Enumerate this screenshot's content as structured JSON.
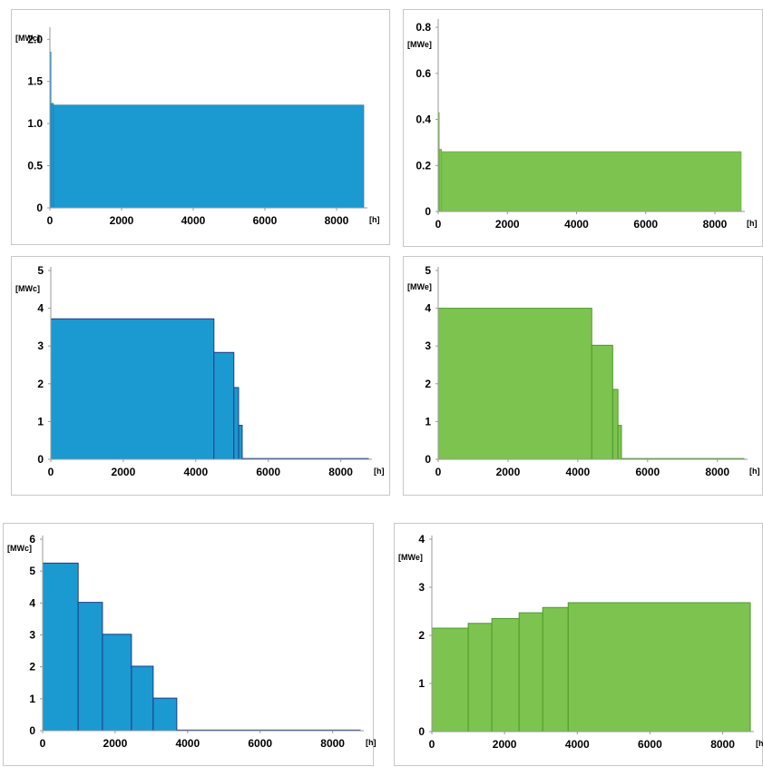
{
  "chart_data": [
    {
      "type": "area",
      "color": "#1a9ad0",
      "edge": "#1a78b0",
      "ylabel": "[MWc]",
      "xlabel": "[h]",
      "xlim": [
        0,
        8760
      ],
      "ylim": [
        0,
        2.1
      ],
      "yticks": [
        0,
        0.5,
        1.0,
        1.5,
        2.0
      ],
      "ytick_labels": [
        "0",
        "0.5",
        "1.0",
        "1.5",
        "2.0"
      ],
      "xticks": [
        0,
        2000,
        4000,
        6000,
        8000
      ],
      "xtick_labels": [
        "0",
        "2000",
        "4000",
        "6000",
        "8000"
      ],
      "steps": [
        {
          "x0": 0,
          "x1": 30,
          "y": 1.85
        },
        {
          "x0": 30,
          "x1": 100,
          "y": 1.24
        },
        {
          "x0": 100,
          "x1": 8760,
          "y": 1.22
        }
      ]
    },
    {
      "type": "area",
      "color": "#7dc350",
      "edge": "#5fa838",
      "ylabel": "[MWe]",
      "xlabel": "[h]",
      "xlim": [
        0,
        8760
      ],
      "ylim": [
        0,
        0.82
      ],
      "yticks": [
        0,
        0.2,
        0.4,
        0.6,
        0.8
      ],
      "ytick_labels": [
        "0",
        "0.2",
        "0.4",
        "0.6",
        "0.8"
      ],
      "xticks": [
        0,
        2000,
        4000,
        6000,
        8000
      ],
      "xtick_labels": [
        "0",
        "2000",
        "4000",
        "6000",
        "8000"
      ],
      "steps": [
        {
          "x0": 0,
          "x1": 30,
          "y": 0.43
        },
        {
          "x0": 30,
          "x1": 100,
          "y": 0.27
        },
        {
          "x0": 100,
          "x1": 8760,
          "y": 0.26
        }
      ]
    },
    {
      "type": "bar",
      "color": "#1a9ad0",
      "edge": "#1f3c88",
      "ylabel": "[MWc]",
      "xlabel": "[h]",
      "xlim": [
        0,
        8760
      ],
      "ylim": [
        0,
        5
      ],
      "yticks": [
        0,
        1,
        2,
        3,
        4,
        5
      ],
      "ytick_labels": [
        "0",
        "1",
        "2",
        "3",
        "4",
        "5"
      ],
      "xticks": [
        0,
        2000,
        4000,
        6000,
        8000
      ],
      "xtick_labels": [
        "0",
        "2000",
        "4000",
        "6000",
        "8000"
      ],
      "steps": [
        {
          "x0": 0,
          "x1": 4500,
          "y": 3.72
        },
        {
          "x0": 4500,
          "x1": 5050,
          "y": 2.83
        },
        {
          "x0": 5050,
          "x1": 5180,
          "y": 1.9
        },
        {
          "x0": 5180,
          "x1": 5280,
          "y": 0.9
        },
        {
          "x0": 5280,
          "x1": 8760,
          "y": 0.02
        }
      ]
    },
    {
      "type": "bar",
      "color": "#7dc350",
      "edge": "#4e9a2c",
      "ylabel": "[MWe]",
      "xlabel": "[h]",
      "xlim": [
        0,
        8760
      ],
      "ylim": [
        0,
        5
      ],
      "yticks": [
        0,
        1,
        2,
        3,
        4,
        5
      ],
      "ytick_labels": [
        "0",
        "1",
        "2",
        "3",
        "4",
        "5"
      ],
      "xticks": [
        0,
        2000,
        4000,
        6000,
        8000
      ],
      "xtick_labels": [
        "0",
        "2000",
        "4000",
        "6000",
        "8000"
      ],
      "steps": [
        {
          "x0": 0,
          "x1": 4400,
          "y": 4.0
        },
        {
          "x0": 4400,
          "x1": 5000,
          "y": 3.02
        },
        {
          "x0": 5000,
          "x1": 5150,
          "y": 1.85
        },
        {
          "x0": 5150,
          "x1": 5250,
          "y": 0.9
        },
        {
          "x0": 5250,
          "x1": 8760,
          "y": 0.02
        }
      ]
    },
    {
      "type": "bar",
      "color": "#1a9ad0",
      "edge": "#1f3c88",
      "ylabel": "[MWc]",
      "xlabel": "[h]",
      "xlim": [
        0,
        8760
      ],
      "ylim": [
        0,
        6
      ],
      "yticks": [
        0,
        1,
        2,
        3,
        4,
        5,
        6
      ],
      "ytick_labels": [
        "0",
        "1",
        "2",
        "3",
        "4",
        "5",
        "6"
      ],
      "xticks": [
        0,
        2000,
        4000,
        6000,
        8000
      ],
      "xtick_labels": [
        "0",
        "2000",
        "4000",
        "6000",
        "8000"
      ],
      "steps": [
        {
          "x0": 0,
          "x1": 980,
          "y": 5.25
        },
        {
          "x0": 980,
          "x1": 1650,
          "y": 4.02
        },
        {
          "x0": 1650,
          "x1": 2450,
          "y": 3.02
        },
        {
          "x0": 2450,
          "x1": 3050,
          "y": 2.02
        },
        {
          "x0": 3050,
          "x1": 3700,
          "y": 1.02
        },
        {
          "x0": 3700,
          "x1": 8760,
          "y": 0.02
        }
      ]
    },
    {
      "type": "bar",
      "color": "#7dc350",
      "edge": "#4e9a2c",
      "ylabel": "[MWe]",
      "xlabel": "[h]",
      "xlim": [
        0,
        8760
      ],
      "ylim": [
        0,
        4
      ],
      "yticks": [
        0,
        1,
        2,
        3,
        4
      ],
      "ytick_labels": [
        "0",
        "1",
        "2",
        "3",
        "4"
      ],
      "xticks": [
        0,
        2000,
        4000,
        6000,
        8000
      ],
      "xtick_labels": [
        "0",
        "2000",
        "4000",
        "6000",
        "8000"
      ],
      "steps": [
        {
          "x0": 0,
          "x1": 1000,
          "y": 2.15
        },
        {
          "x0": 1000,
          "x1": 1650,
          "y": 2.25
        },
        {
          "x0": 1650,
          "x1": 2400,
          "y": 2.35
        },
        {
          "x0": 2400,
          "x1": 3050,
          "y": 2.47
        },
        {
          "x0": 3050,
          "x1": 3750,
          "y": 2.58
        },
        {
          "x0": 3750,
          "x1": 8760,
          "y": 2.68
        }
      ]
    }
  ]
}
